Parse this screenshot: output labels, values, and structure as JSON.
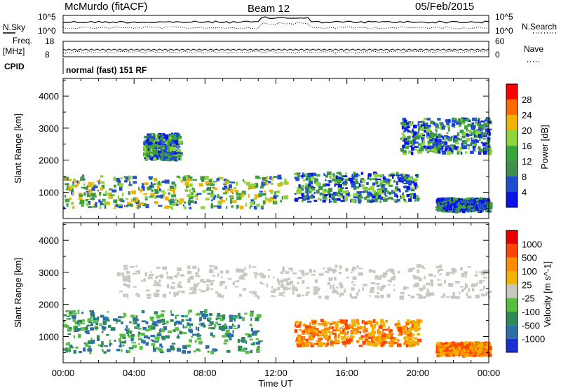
{
  "header": {
    "station": "McMurdo (fitACF)",
    "beam": "Beam 12",
    "date": "05/Feb/2015"
  },
  "aux": {
    "nsky_label": "N.Sky",
    "nsky_ticks": [
      "10^5",
      "10^0"
    ],
    "nsearch_label": "N.Search",
    "nsearch_ticks": [
      "10^5",
      "10^0"
    ],
    "freq_label_line1": "Freq.",
    "freq_label_line2": "[MHz]",
    "freq_ticks": [
      "18",
      "8"
    ],
    "nave_label": "Nave",
    "nave_ticks": [
      "60",
      "0"
    ],
    "cpid_label": "CPID",
    "cpid_text": "normal (fast) 151 RF"
  },
  "chart_data": [
    {
      "type": "heatmap",
      "title": "",
      "ylabel": "Slant Range [km]",
      "xlabel": "",
      "ylim": [
        180,
        4550
      ],
      "yticks": [
        "1000",
        "2000",
        "3000",
        "4000"
      ],
      "colorbar_label": "Power [dB]",
      "colorbar_ticks": [
        "28",
        "24",
        "20",
        "16",
        "12",
        "8",
        "4"
      ],
      "colors": [
        "#0a14e6",
        "#1f4dd0",
        "#3f8f4f",
        "#3aa63a",
        "#8fd43a",
        "#f0b400",
        "#ff6a00",
        "#ff0000"
      ],
      "features": [
        {
          "t0": 0.0,
          "t1": 12.5,
          "r0": 500,
          "r1": 1500,
          "level": "high"
        },
        {
          "t0": 4.5,
          "t1": 6.5,
          "r0": 2000,
          "r1": 2800,
          "level": "mid"
        },
        {
          "t0": 13.0,
          "t1": 20.0,
          "r0": 700,
          "r1": 1600,
          "level": "mid"
        },
        {
          "t0": 19.0,
          "t1": 24.0,
          "r0": 2200,
          "r1": 3300,
          "level": "mid"
        },
        {
          "t0": 21.0,
          "t1": 24.0,
          "r0": 400,
          "r1": 800,
          "level": "low"
        }
      ]
    },
    {
      "type": "heatmap",
      "title": "",
      "ylabel": "Slant Range [km]",
      "xlabel": "Time UT",
      "ylim": [
        180,
        4550
      ],
      "yticks": [
        "1000",
        "2000",
        "3000",
        "4000"
      ],
      "xticks": [
        "00:00",
        "04:00",
        "08:00",
        "12:00",
        "16:00",
        "20:00",
        "00:00"
      ],
      "colorbar_label": "Velocity [m s^-1]",
      "colorbar_ticks": [
        "1000",
        "500",
        "100",
        "25",
        "-25",
        "-100",
        "-500",
        "-1000"
      ],
      "colors": [
        "#1a2fd0",
        "#2f6fa8",
        "#2e8b57",
        "#55c040",
        "#c8c8c0",
        "#f0b400",
        "#ff8c00",
        "#ff4500",
        "#e60000"
      ],
      "features": [
        {
          "t0": 0.0,
          "t1": 11.0,
          "r0": 500,
          "r1": 1800,
          "velocity": "positive"
        },
        {
          "t0": 3.0,
          "t1": 24.0,
          "r0": 2200,
          "r1": 3200,
          "velocity": "near-zero"
        },
        {
          "t0": 13.0,
          "t1": 20.0,
          "r0": 700,
          "r1": 1500,
          "velocity": "negative"
        },
        {
          "t0": 21.0,
          "t1": 24.0,
          "r0": 400,
          "r1": 800,
          "velocity": "negative"
        }
      ]
    }
  ]
}
